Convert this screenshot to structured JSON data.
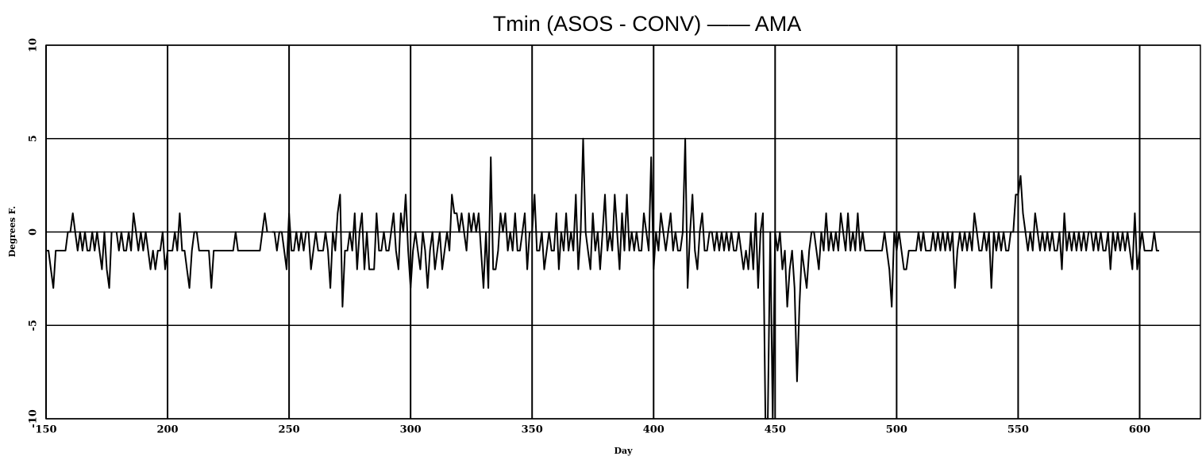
{
  "chart_data": {
    "type": "line",
    "title": "Tmin (ASOS - CONV) —— AMA",
    "xlabel": "Day",
    "ylabel": "Degrees F.",
    "xlim": [
      150,
      625
    ],
    "ylim": [
      -10,
      10
    ],
    "xticks": [
      150,
      200,
      250,
      300,
      350,
      400,
      450,
      500,
      550,
      600
    ],
    "yticks": [
      -10,
      -5,
      0,
      5,
      10
    ],
    "grid": true,
    "x": [
      150,
      151,
      152,
      153,
      154,
      155,
      156,
      157,
      158,
      159,
      160,
      161,
      162,
      163,
      164,
      165,
      166,
      167,
      168,
      169,
      170,
      171,
      172,
      173,
      174,
      175,
      176,
      177,
      178,
      179,
      180,
      181,
      182,
      183,
      184,
      185,
      186,
      187,
      188,
      189,
      190,
      191,
      192,
      193,
      194,
      195,
      196,
      197,
      198,
      199,
      200,
      201,
      202,
      203,
      204,
      205,
      206,
      207,
      208,
      209,
      210,
      211,
      212,
      213,
      214,
      215,
      216,
      217,
      218,
      219,
      220,
      221,
      222,
      223,
      224,
      225,
      226,
      227,
      228,
      229,
      230,
      231,
      232,
      233,
      234,
      235,
      236,
      237,
      238,
      239,
      240,
      241,
      242,
      243,
      244,
      245,
      246,
      247,
      248,
      249,
      250,
      251,
      252,
      253,
      254,
      255,
      256,
      257,
      258,
      259,
      260,
      261,
      262,
      263,
      264,
      265,
      266,
      267,
      268,
      269,
      270,
      271,
      272,
      273,
      274,
      275,
      276,
      277,
      278,
      279,
      280,
      281,
      282,
      283,
      284,
      285,
      286,
      287,
      288,
      289,
      290,
      291,
      292,
      293,
      294,
      295,
      296,
      297,
      298,
      299,
      300,
      301,
      302,
      303,
      304,
      305,
      306,
      307,
      308,
      309,
      310,
      311,
      312,
      313,
      314,
      315,
      316,
      317,
      318,
      319,
      320,
      321,
      322,
      323,
      324,
      325,
      326,
      327,
      328,
      329,
      330,
      331,
      332,
      333,
      334,
      335,
      336,
      337,
      338,
      339,
      340,
      341,
      342,
      343,
      344,
      345,
      346,
      347,
      348,
      349,
      350,
      351,
      352,
      353,
      354,
      355,
      356,
      357,
      358,
      359,
      360,
      361,
      362,
      363,
      364,
      365,
      366,
      367,
      368,
      369,
      370,
      371,
      372,
      373,
      374,
      375,
      376,
      377,
      378,
      379,
      380,
      381,
      382,
      383,
      384,
      385,
      386,
      387,
      388,
      389,
      390,
      391,
      392,
      393,
      394,
      395,
      396,
      397,
      398,
      399,
      400,
      401,
      402,
      403,
      404,
      405,
      406,
      407,
      408,
      409,
      410,
      411,
      412,
      413,
      414,
      415,
      416,
      417,
      418,
      419,
      420,
      421,
      422,
      423,
      424,
      425,
      426,
      427,
      428,
      429,
      430,
      431,
      432,
      433,
      434,
      435,
      436,
      437,
      438,
      439,
      440,
      441,
      442,
      443,
      444,
      445,
      446,
      447,
      448,
      449,
      450,
      451,
      452,
      453,
      454,
      455,
      456,
      457,
      458,
      459,
      460,
      461,
      462,
      463,
      464,
      465,
      466,
      467,
      468,
      469,
      470,
      471,
      472,
      473,
      474,
      475,
      476,
      477,
      478,
      479,
      480,
      481,
      482,
      483,
      484,
      485,
      486,
      487,
      488,
      489,
      490,
      491,
      492,
      493,
      494,
      495,
      496,
      497,
      498,
      499,
      500,
      501,
      502,
      503,
      504,
      505,
      506,
      507,
      508,
      509,
      510,
      511,
      512,
      513,
      514,
      515,
      516,
      517,
      518,
      519,
      520,
      521,
      522,
      523,
      524,
      525,
      526,
      527,
      528,
      529,
      530,
      531,
      532,
      533,
      534,
      535,
      536,
      537,
      538,
      539,
      540,
      541,
      542,
      543,
      544,
      545,
      546,
      547,
      548,
      549,
      550,
      551,
      552,
      553,
      554,
      555,
      556,
      557,
      558,
      559,
      560,
      561,
      562,
      563,
      564,
      565,
      566,
      567,
      568,
      569,
      570,
      571,
      572,
      573,
      574,
      575,
      576,
      577,
      578,
      579,
      580,
      581,
      582,
      583,
      584,
      585,
      586,
      587,
      588,
      589,
      590,
      591,
      592,
      593,
      594,
      595,
      596,
      597,
      598,
      599,
      600,
      601,
      602,
      603,
      604,
      605,
      606,
      607,
      608
    ],
    "series": [
      {
        "name": "AMA",
        "color": "#000000",
        "values": [
          -1,
          -1,
          -2,
          -3,
          -1,
          -1,
          -1,
          -1,
          -1,
          0,
          0,
          1,
          0,
          -1,
          0,
          -1,
          0,
          -1,
          -1,
          0,
          -1,
          0,
          -1,
          -2,
          0,
          -2,
          -3,
          0,
          null,
          0,
          -1,
          0,
          -1,
          -1,
          0,
          -1,
          1,
          0,
          -1,
          0,
          -1,
          0,
          -1,
          -2,
          -1,
          -2,
          -1,
          -1,
          0,
          -2,
          -1,
          -1,
          -1,
          0,
          -1,
          1,
          -1,
          -1,
          -2,
          -3,
          -1,
          0,
          0,
          -1,
          -1,
          -1,
          -1,
          -1,
          -3,
          -1,
          -1,
          -1,
          -1,
          -1,
          -1,
          -1,
          -1,
          -1,
          0,
          -1,
          -1,
          -1,
          -1,
          -1,
          -1,
          -1,
          -1,
          -1,
          -1,
          0,
          1,
          0,
          null,
          0,
          0,
          -1,
          0,
          0,
          -1,
          -2,
          1,
          -1,
          -1,
          0,
          -1,
          0,
          -1,
          0,
          0,
          -2,
          -1,
          0,
          -1,
          -1,
          -1,
          0,
          -1,
          -3,
          0,
          -1,
          1,
          2,
          -4,
          -1,
          -1,
          0,
          -1,
          1,
          -2,
          0,
          1,
          -2,
          0,
          -2,
          -2,
          -2,
          1,
          -1,
          -1,
          0,
          -1,
          -1,
          0,
          1,
          -1,
          -2,
          1,
          0,
          2,
          -1,
          -3,
          -1,
          0,
          -1,
          -2,
          0,
          -1,
          -3,
          -1,
          0,
          -2,
          -1,
          0,
          -2,
          -1,
          0,
          -1,
          2,
          1,
          1,
          0,
          1,
          0,
          -1,
          1,
          0,
          1,
          0,
          1,
          -1,
          -3,
          0,
          -3,
          4,
          -2,
          -2,
          -1,
          1,
          0,
          1,
          -1,
          0,
          -1,
          1,
          -1,
          -1,
          0,
          1,
          -2,
          0,
          0,
          2,
          -1,
          -1,
          0,
          -2,
          -1,
          0,
          -1,
          -1,
          1,
          -2,
          0,
          -1,
          1,
          -1,
          0,
          -1,
          2,
          -2,
          0,
          5,
          0,
          -1,
          -2,
          1,
          -1,
          0,
          -2,
          0,
          2,
          -1,
          0,
          -1,
          2,
          0,
          -2,
          1,
          -1,
          2,
          -1,
          0,
          -1,
          0,
          -1,
          -1,
          1,
          0,
          -1,
          4,
          -2,
          0,
          -1,
          1,
          0,
          -1,
          0,
          1,
          -1,
          0,
          -1,
          -1,
          0,
          5,
          -3,
          0,
          2,
          -1,
          -2,
          0,
          1,
          -1,
          -1,
          0,
          0,
          -1,
          0,
          -1,
          0,
          -1,
          0,
          -1,
          0,
          -1,
          -1,
          0,
          -1,
          -2,
          -1,
          -2,
          0,
          -2,
          1,
          -3,
          0,
          1,
          -10,
          -10,
          0,
          -10,
          0,
          -1,
          0,
          -2,
          -1,
          -4,
          -2,
          -1,
          -3,
          -8,
          -4,
          -1,
          -2,
          -3,
          -1,
          0,
          0,
          -1,
          -2,
          0,
          -1,
          1,
          -1,
          0,
          -1,
          0,
          -1,
          1,
          0,
          -1,
          1,
          -1,
          0,
          -1,
          1,
          -1,
          0,
          -1,
          -1,
          -1,
          -1,
          -1,
          -1,
          -1,
          -1,
          0,
          -1,
          -2,
          -4,
          0,
          -1,
          0,
          -1,
          -2,
          -2,
          -1,
          -1,
          -1,
          -1,
          0,
          -1,
          0,
          -1,
          -1,
          -1,
          0,
          -1,
          0,
          -1,
          0,
          -1,
          0,
          -1,
          0,
          -3,
          -1,
          0,
          -1,
          0,
          -1,
          0,
          -1,
          1,
          0,
          -1,
          -1,
          0,
          -1,
          0,
          -3,
          0,
          -1,
          0,
          -1,
          0,
          -1,
          -1,
          0,
          0,
          2,
          2,
          3,
          1,
          0,
          -1,
          0,
          -1,
          1,
          0,
          -1,
          0,
          -1,
          0,
          -1,
          0,
          -1,
          -1,
          0,
          -2,
          1,
          -1,
          0,
          -1,
          0,
          -1,
          0,
          -1,
          0,
          -1,
          0,
          0,
          -1,
          0,
          -1,
          0,
          -1,
          -1,
          0,
          -2,
          0,
          -1,
          0,
          -1,
          0,
          -1,
          0,
          -1,
          -2,
          1,
          -2,
          -1,
          0,
          -1,
          -1,
          -1,
          -1,
          0,
          -1,
          -1
        ]
      }
    ]
  }
}
